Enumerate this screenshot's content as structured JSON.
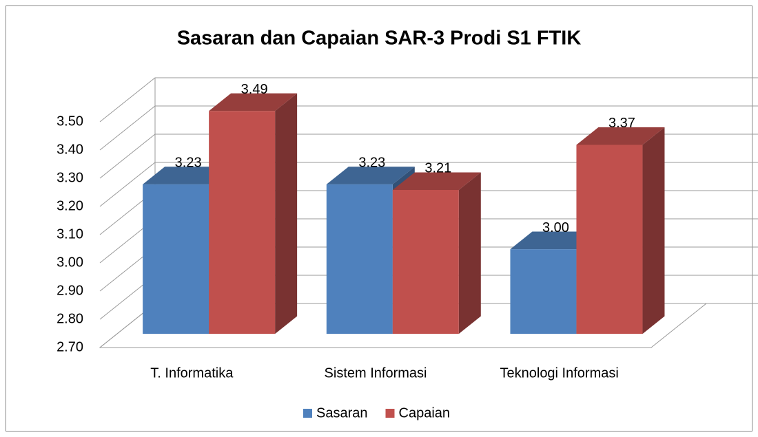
{
  "chart_data": {
    "type": "bar3d",
    "title": "Sasaran dan Capaian SAR-3 Prodi S1 FTIK",
    "categories": [
      "T. Informatika",
      "Sistem Informasi",
      "Teknologi Informasi"
    ],
    "series": [
      {
        "name": "Sasaran",
        "color": "#4f81bd",
        "values": [
          3.23,
          3.23,
          3
        ],
        "value_labels": [
          "3.23",
          "3.23",
          "3.00"
        ]
      },
      {
        "name": "Capaian",
        "color": "#c0504d",
        "values": [
          3.49,
          3.21,
          3.37
        ],
        "value_labels": [
          "3.49",
          "3.21",
          "3.37"
        ]
      }
    ],
    "ylim": [
      2.7,
      3.5
    ],
    "yticks": [
      {
        "value": 2.7,
        "label": "2.70"
      },
      {
        "value": 2.8,
        "label": "2.80"
      },
      {
        "value": 2.9,
        "label": "2.90"
      },
      {
        "value": 3.0,
        "label": "3.00"
      },
      {
        "value": 3.1,
        "label": "3.10"
      },
      {
        "value": 3.2,
        "label": "3.20"
      },
      {
        "value": 3.3,
        "label": "3.30"
      },
      {
        "value": 3.4,
        "label": "3.40"
      },
      {
        "value": 3.5,
        "label": "3.50"
      }
    ],
    "grid": true,
    "legend": "bottom"
  }
}
